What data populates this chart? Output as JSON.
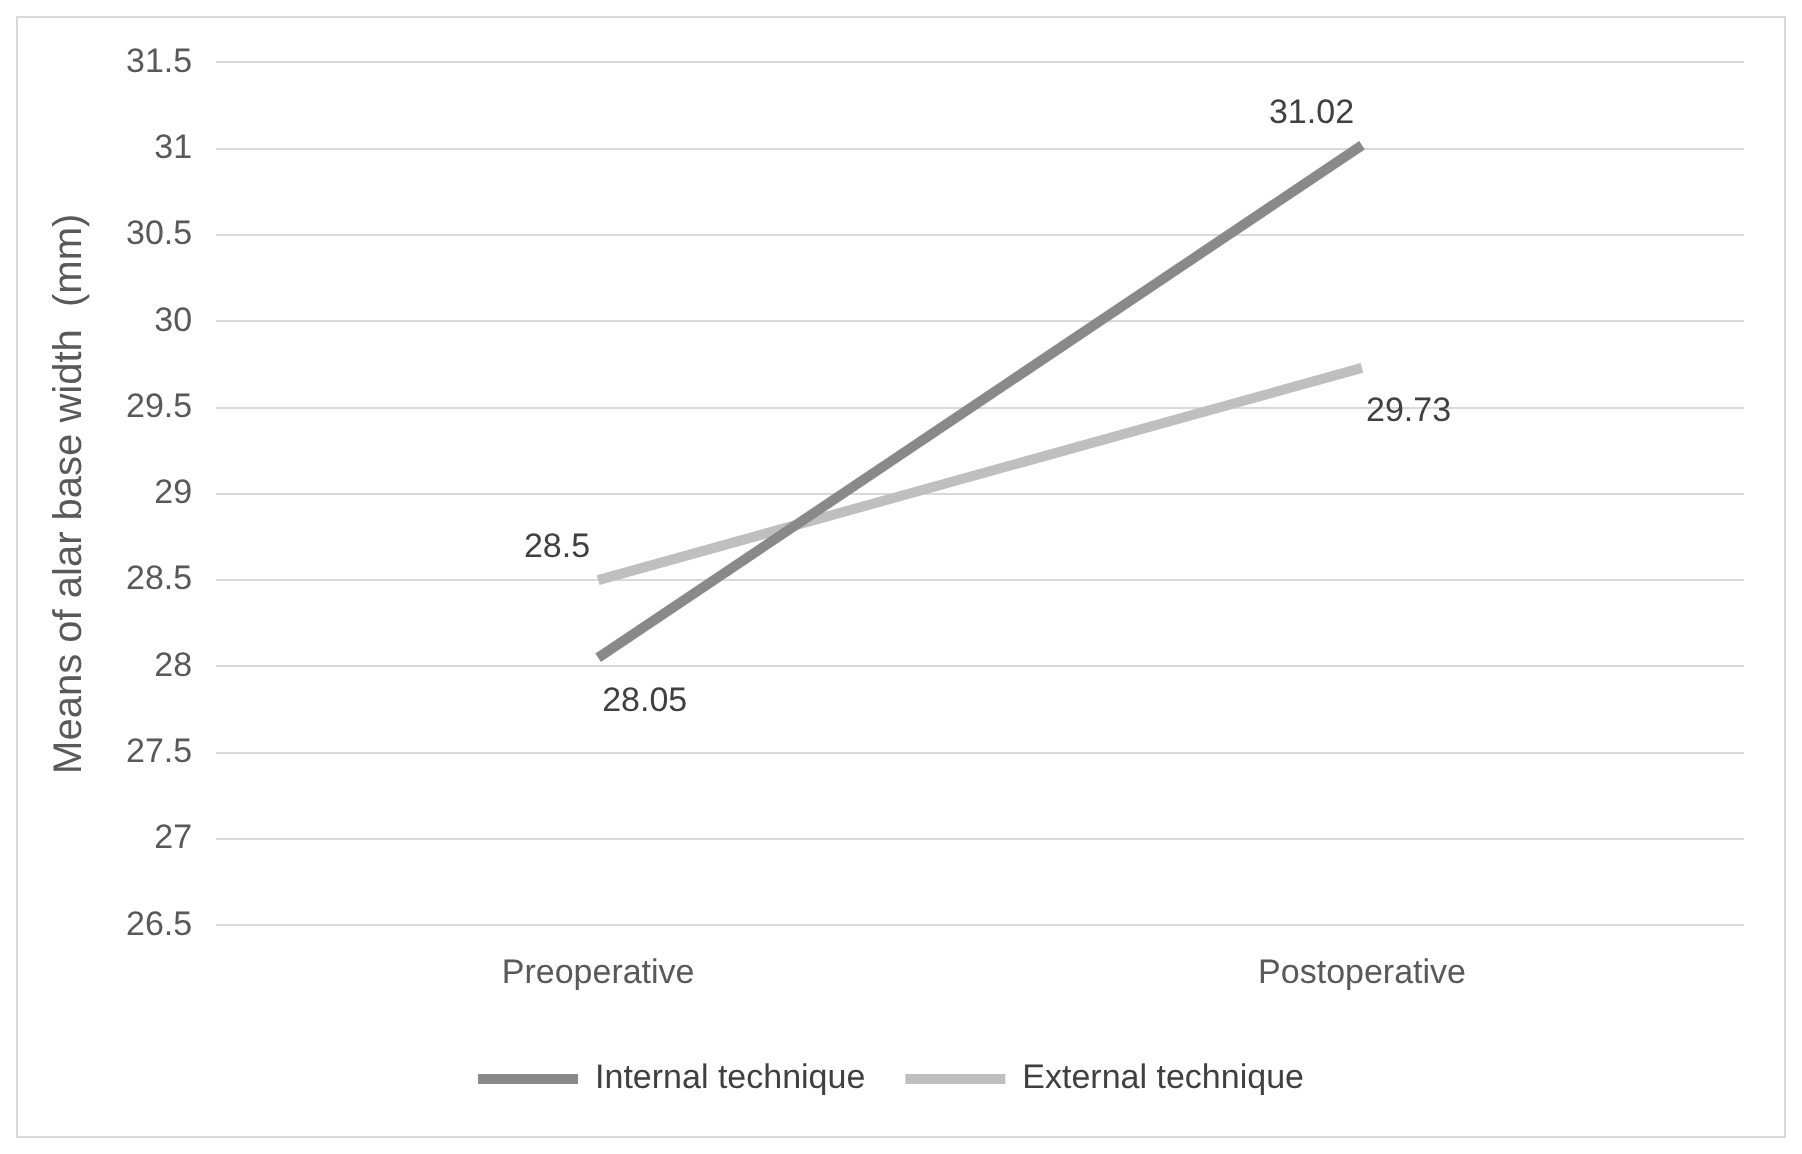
{
  "chart_data": {
    "type": "line",
    "ylabel": "Means of alar base width  (mm)",
    "categories": [
      "Preoperative",
      "Postoperative"
    ],
    "series": [
      {
        "name": "Internal technique",
        "color": "#898989",
        "values": [
          28.05,
          31.02
        ]
      },
      {
        "name": "External technique",
        "color": "#bfbfbf",
        "values": [
          28.5,
          29.73
        ]
      }
    ],
    "ylim": [
      26.5,
      31.5
    ],
    "yticks": [
      26.5,
      27,
      27.5,
      28,
      28.5,
      29,
      29.5,
      30,
      30.5,
      31,
      31.5
    ],
    "grid": "y",
    "legend": "bottom",
    "data_labels": true,
    "marker": "none",
    "line_style": "solid"
  }
}
